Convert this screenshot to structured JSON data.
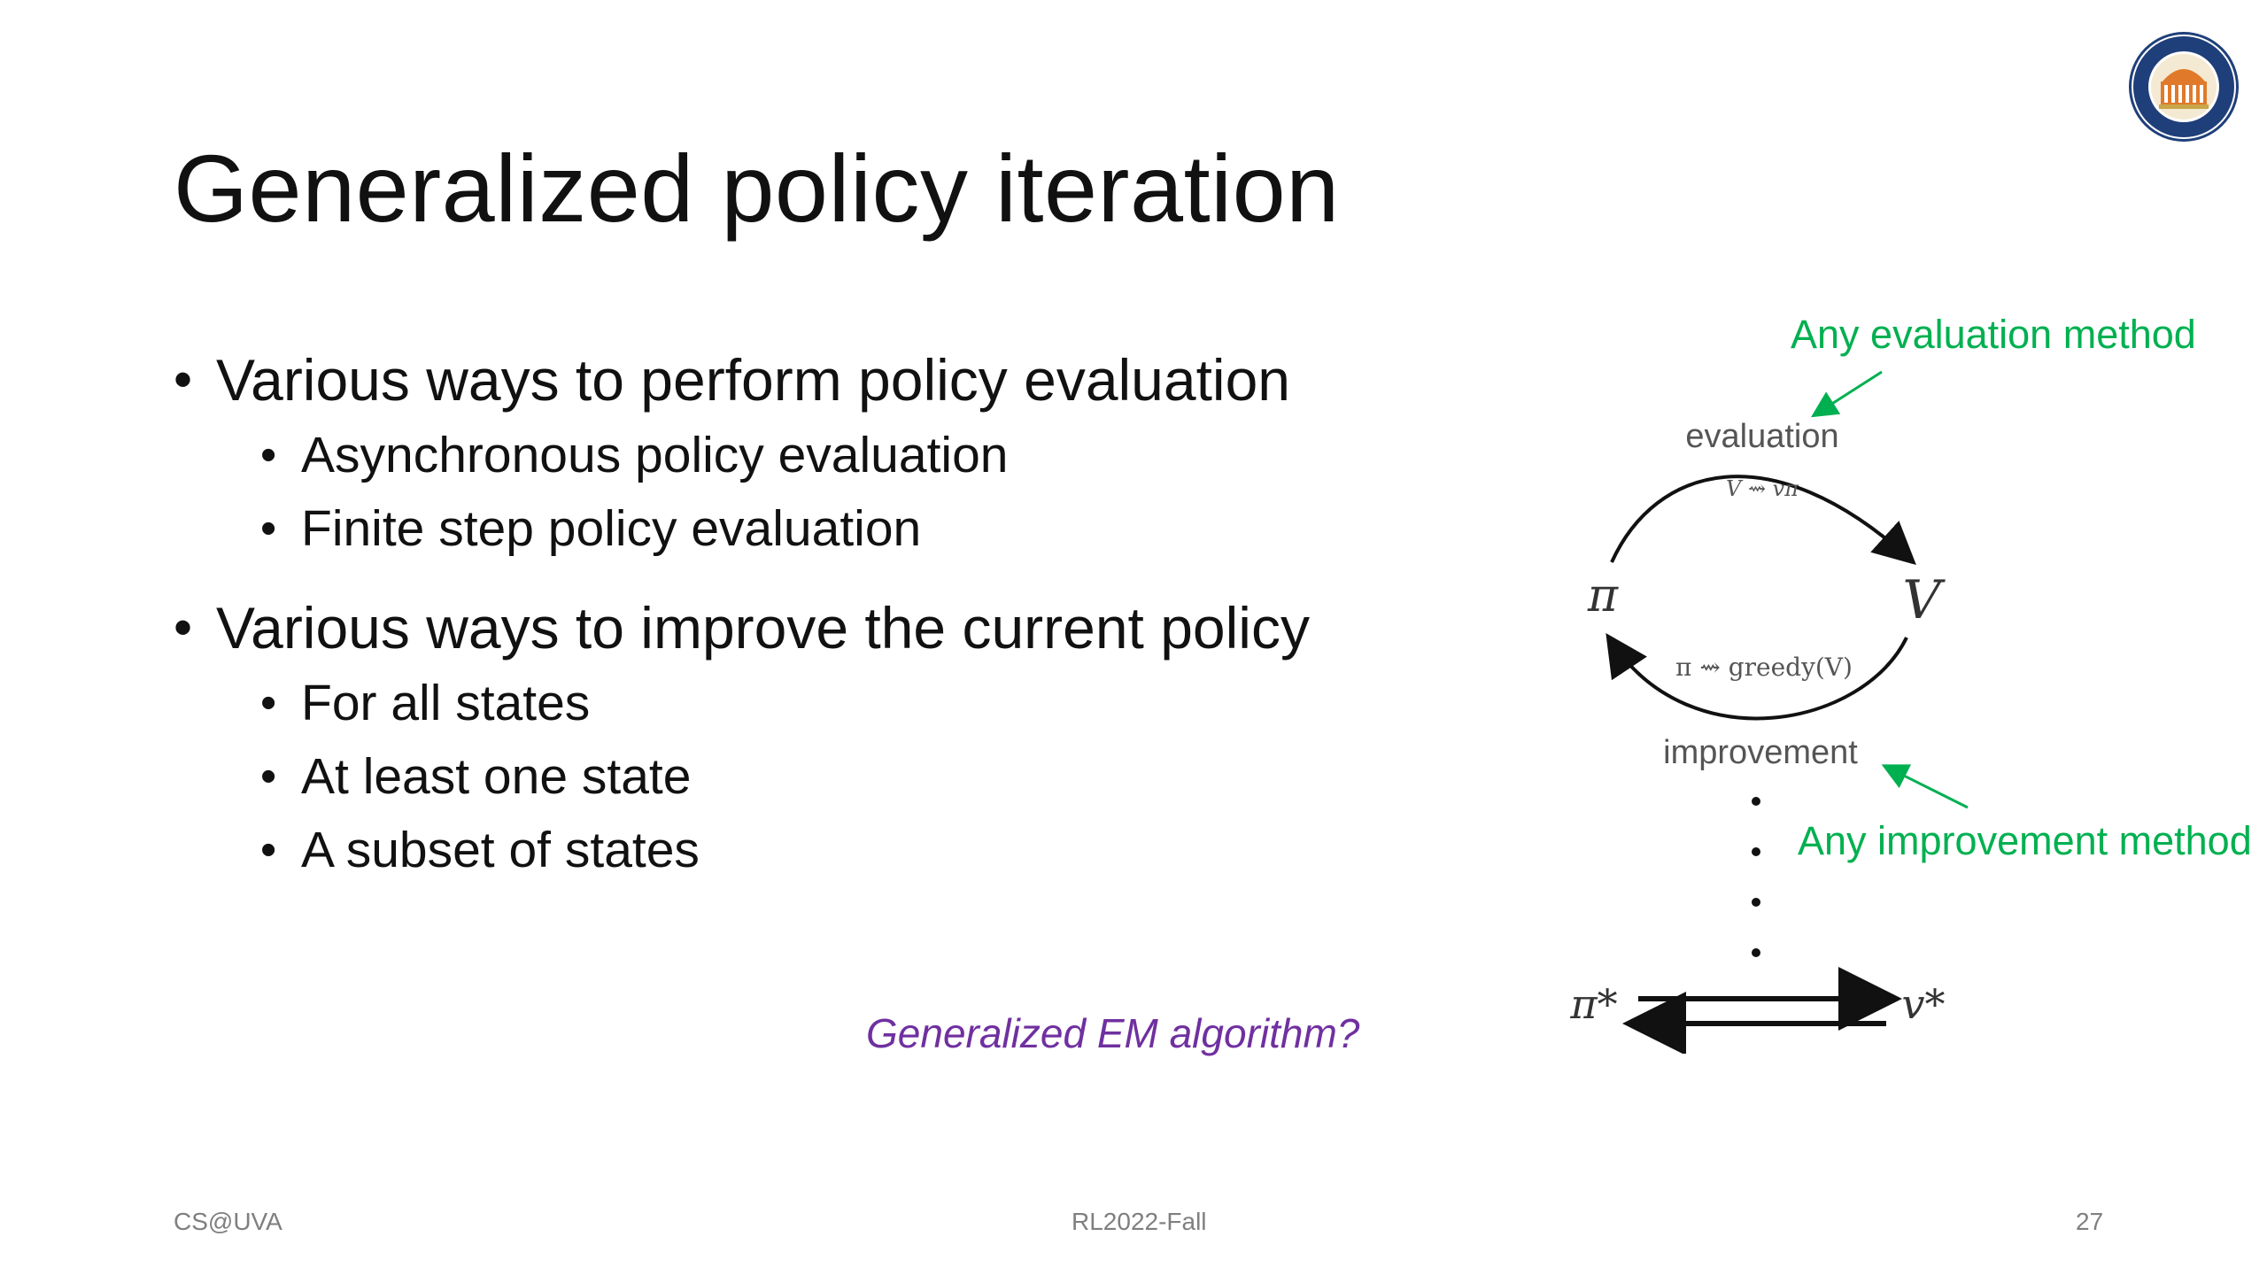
{
  "slide": {
    "title": "Generalized policy iteration",
    "bullets": [
      {
        "text": "Various ways to perform policy evaluation",
        "sub": [
          "Asynchronous policy evaluation",
          "Finite step policy evaluation"
        ]
      },
      {
        "text": "Various ways to improve the current policy",
        "sub": [
          "For all states",
          "At least one state",
          "A subset of states"
        ]
      }
    ],
    "em_note": "Generalized EM algorithm?",
    "footer": {
      "left": "CS@UVA",
      "center": "RL2022-Fall",
      "page": "27"
    }
  },
  "diagram": {
    "evaluation_label": "evaluation",
    "improvement_label": "improvement",
    "pi_label": "π",
    "v_label": "V",
    "eval_formula": "V ⇝ vπ",
    "improve_formula": "π ⇝ greedy(V)",
    "pi_star": "π*",
    "v_star": "v*"
  },
  "annotations": {
    "evaluation": "Any evaluation method",
    "improvement": "Any improvement method"
  },
  "logo": {
    "text": "UNIVERSITY OF VIRGINIA",
    "icon": "university-seal-icon"
  },
  "colors": {
    "annotation": "#00B050",
    "em_note": "#7030A0",
    "footer": "#7F7F7F"
  }
}
